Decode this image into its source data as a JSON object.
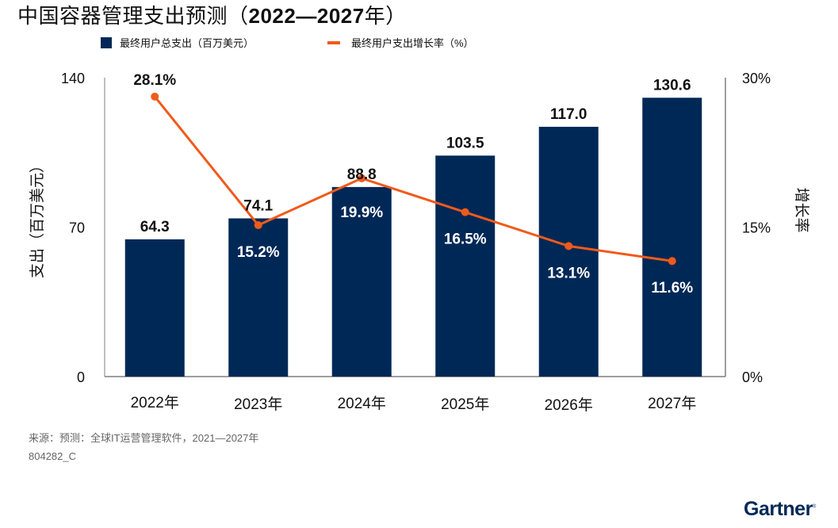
{
  "title_prefix": "中国容器管理支出预测（",
  "title_years": "2022—2027",
  "title_suffix": "年）",
  "legend": {
    "bars_label": "最终用户总支出（百万美元）",
    "line_label": "最终用户支出增长率（%）"
  },
  "footer": {
    "source": "来源：预测：全球IT运营管理软件，2021—2027年",
    "code": "804282_C",
    "logo": "Gartner"
  },
  "colors": {
    "bar": "#002856",
    "line": "#f05a1a",
    "axis": "#7f7f7f"
  },
  "chart_data": {
    "type": "bar+line",
    "title": "中国容器管理支出预测（2022—2027年）",
    "categories": [
      "2022年",
      "2023年",
      "2024年",
      "2025年",
      "2026年",
      "2027年"
    ],
    "series": [
      {
        "name": "最终用户总支出（百万美元）",
        "type": "bar",
        "axis": "left",
        "values": [
          64.3,
          74.1,
          88.8,
          103.5,
          117.0,
          130.6
        ],
        "labels": [
          "64.3",
          "74.1",
          "88.8",
          "103.5",
          "117.0",
          "130.6"
        ]
      },
      {
        "name": "最终用户支出增长率（%）",
        "type": "line",
        "axis": "right",
        "values": [
          28.1,
          15.2,
          19.9,
          16.5,
          13.1,
          11.6
        ],
        "labels": [
          "28.1%",
          "15.2%",
          "19.9%",
          "16.5%",
          "13.1%",
          "11.6%"
        ]
      }
    ],
    "ylabel": "支出（百万美元）",
    "ylim": [
      0,
      140
    ],
    "yticks": [
      "0",
      "70",
      "140"
    ],
    "ytick_values": [
      0,
      70,
      140
    ],
    "y2label": "增长率",
    "y2lim": [
      0,
      30
    ],
    "y2ticks": [
      "0%",
      "15%",
      "30%"
    ],
    "y2tick_values": [
      0,
      15,
      30
    ],
    "grid": false,
    "legend_position": "top"
  }
}
